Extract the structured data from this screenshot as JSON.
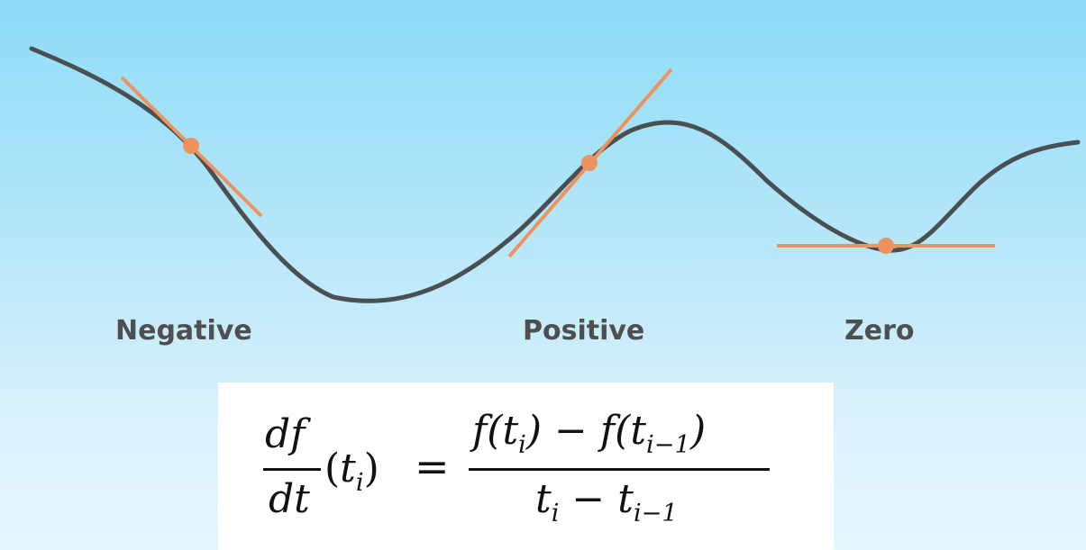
{
  "labels": {
    "negative": "Negative",
    "positive": "Positive",
    "zero": "Zero"
  },
  "formula": {
    "lhs_numerator": "df",
    "lhs_denominator": "dt",
    "lhs_arg_open": "(",
    "lhs_arg_var": "t",
    "lhs_arg_sub": "i",
    "lhs_arg_close": ")",
    "equals": "=",
    "rhs_numerator_part1": "f(t",
    "rhs_numerator_sub1": "i",
    "rhs_numerator_part2": ") − f(t",
    "rhs_numerator_sub2": "i−1",
    "rhs_numerator_part3": ")",
    "rhs_denominator_part1": "t",
    "rhs_denominator_sub1": "i",
    "rhs_denominator_part2": " − t",
    "rhs_denominator_sub2": "i−1"
  },
  "colors": {
    "curve": "#4a4f52",
    "tangent": "#ee925e",
    "label": "#4f4f4f"
  }
}
